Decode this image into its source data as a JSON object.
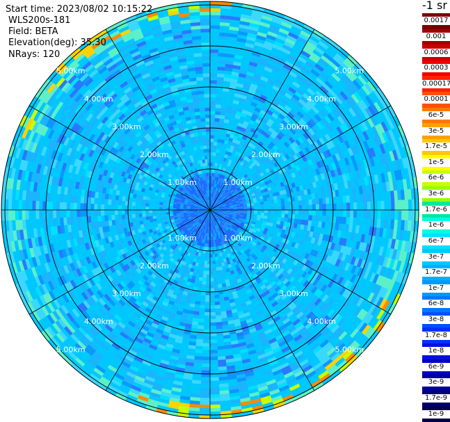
{
  "header": {
    "start_time": "Start time: 2023/08/02 10:15:22",
    "instrument": "WLS200s-181",
    "field": "Field: BETA",
    "elevation": "Elevation(deg): 35.30",
    "nrays": "NRays: 120"
  },
  "range_ring_labels": [
    "1.00km",
    "2.00km",
    "3.00km",
    "4.00km",
    "5.00km"
  ],
  "colorbar": {
    "title": "-1 sr",
    "labels": [
      "0.0017",
      "0.001",
      "0.0006",
      "0.0003",
      "0.00017",
      "0.0001",
      "6e-5",
      "3e-5",
      "1.7e-5",
      "1e-5",
      "6e-6",
      "3e-6",
      "1.7e-6",
      "1e-6",
      "6e-7",
      "3e-7",
      "1.7e-7",
      "1e-7",
      "6e-8",
      "3e-8",
      "1.7e-8",
      "1e-8",
      "6e-9",
      "3e-9",
      "1.7e-9",
      "1e-9"
    ],
    "colors": [
      "#7a0000",
      "#a00000",
      "#c80000",
      "#f00000",
      "#ff2000",
      "#ff5000",
      "#ff7800",
      "#ffa000",
      "#ffc800",
      "#ffff00",
      "#c8ff00",
      "#96ff00",
      "#00e8a0",
      "#00ffe0",
      "#00e0ff",
      "#00c8ff",
      "#00b0ff",
      "#0098ff",
      "#0078ff",
      "#0050ff",
      "#0030ff",
      "#0010e0",
      "#0000c0",
      "#00009a",
      "#000070",
      "#00004a"
    ]
  }
}
